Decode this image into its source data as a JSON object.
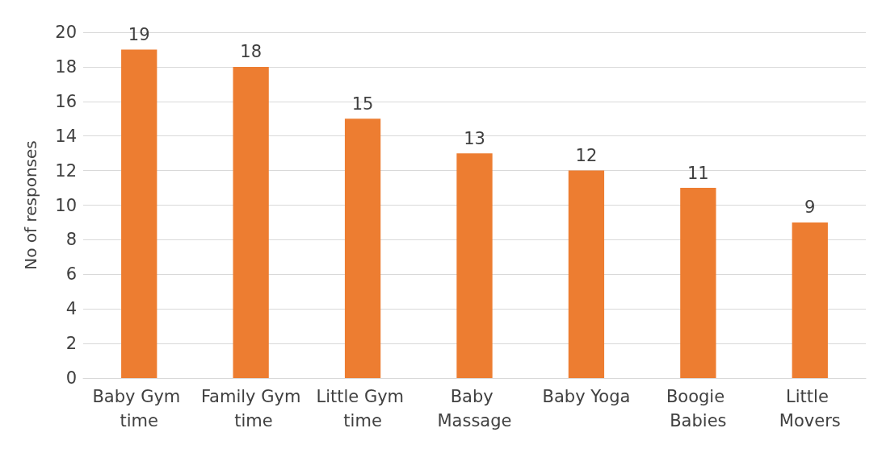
{
  "chart_data": {
    "type": "bar",
    "ylabel": "No of responses",
    "categories": [
      "Baby Gym time",
      "Family Gym time",
      "Little Gym time",
      "Baby Massage",
      "Baby Yoga",
      "Boogie Babies",
      "Little Movers"
    ],
    "values": [
      19,
      18,
      15,
      13,
      12,
      11,
      9
    ],
    "color": "#ed7d31",
    "ylim": [
      0,
      20
    ],
    "yticks": [
      0,
      2,
      4,
      6,
      8,
      10,
      12,
      14,
      16,
      18,
      20
    ],
    "grid": "y",
    "data_labels": true
  }
}
